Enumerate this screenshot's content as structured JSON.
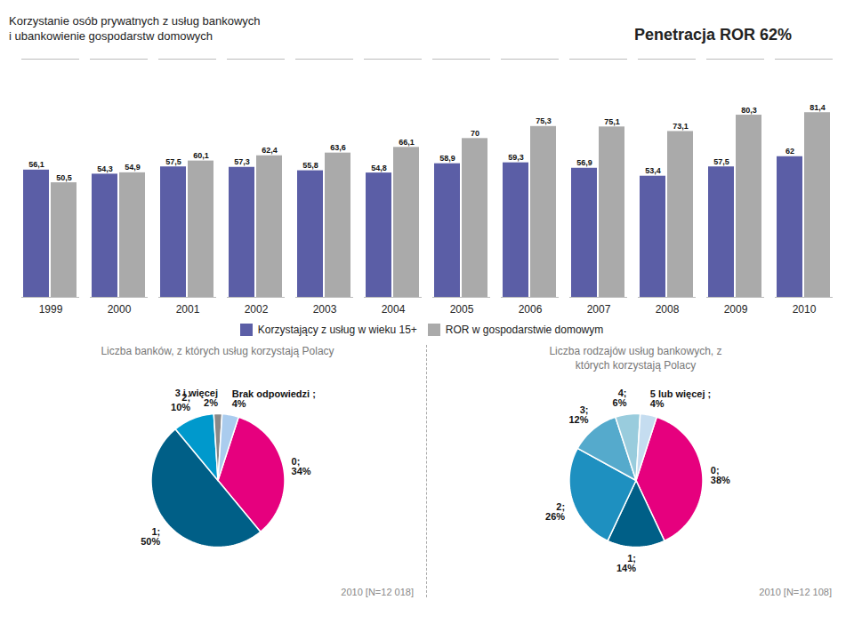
{
  "chart_data": [
    {
      "type": "bar",
      "title": "Penetracja ROR 62%",
      "subtitle": "Korzystanie osób prywatnych z usług bankowych\ni ubankowienie gospodarstw domowych",
      "categories": [
        "1999",
        "2000",
        "2001",
        "2002",
        "2003",
        "2004",
        "2005",
        "2006",
        "2007",
        "2008",
        "2009",
        "2010"
      ],
      "series": [
        {
          "name": "Korzystający z usług w wieku 15+",
          "color": "#5b5ea6",
          "values": [
            56.1,
            54.3,
            57.5,
            57.3,
            55.8,
            54.8,
            58.9,
            59.3,
            56.9,
            53.4,
            57.5,
            62.0
          ],
          "value_labels": [
            "56,1",
            "54,3",
            "57,5",
            "57,3",
            "55,8",
            "54,8",
            "58,9",
            "59,3",
            "56,9",
            "53,4",
            "57,5",
            "62"
          ]
        },
        {
          "name": "ROR w gospodarstwie domowym",
          "color": "#aaaaaa",
          "values": [
            50.5,
            54.9,
            60.1,
            62.4,
            63.6,
            66.1,
            70.0,
            75.3,
            75.1,
            73.1,
            80.3,
            81.4
          ],
          "value_labels": [
            "50,5",
            "54,9",
            "60,1",
            "62,4",
            "63,6",
            "66,1",
            "70",
            "75,3",
            "75,1",
            "73,1",
            "80,3",
            "81,4"
          ]
        }
      ],
      "ylim": [
        0,
        105
      ],
      "yticks": [],
      "tick_labels": "x",
      "data_labels": true,
      "legend": "bottom",
      "grid": false
    },
    {
      "type": "pie",
      "title": "Liczba banków, z których usług korzystają Polacy",
      "categories": [
        "0;",
        "1;",
        "2;",
        "3 i więcej",
        "Brak odpowiedzi ;"
      ],
      "values": [
        34,
        50,
        10,
        2,
        4
      ],
      "value_labels": [
        "34%",
        "50%",
        "10%",
        "2%",
        "4%"
      ],
      "colors": [
        "#e6007e",
        "#005f87",
        "#0099cc",
        "#888888",
        "#aaccee"
      ],
      "data_labels": true,
      "annotations": [
        "2010 [N=12 018]"
      ]
    },
    {
      "type": "pie",
      "title": "Liczba rodzajów usług bankowych, z\nktórych korzystają Polacy",
      "categories": [
        "0;",
        "1;",
        "2;",
        "3;",
        "4;",
        "5 lub więcej ;"
      ],
      "values": [
        38,
        14,
        26,
        12,
        6,
        4
      ],
      "value_labels": [
        "38%",
        "14%",
        "26%",
        "12%",
        "6%",
        "4%"
      ],
      "colors": [
        "#e6007e",
        "#005f87",
        "#1e90c0",
        "#55aacc",
        "#99ccdd",
        "#c5ddf0"
      ],
      "data_labels": true,
      "annotations": [
        "2010 [N=12 108]"
      ]
    }
  ]
}
